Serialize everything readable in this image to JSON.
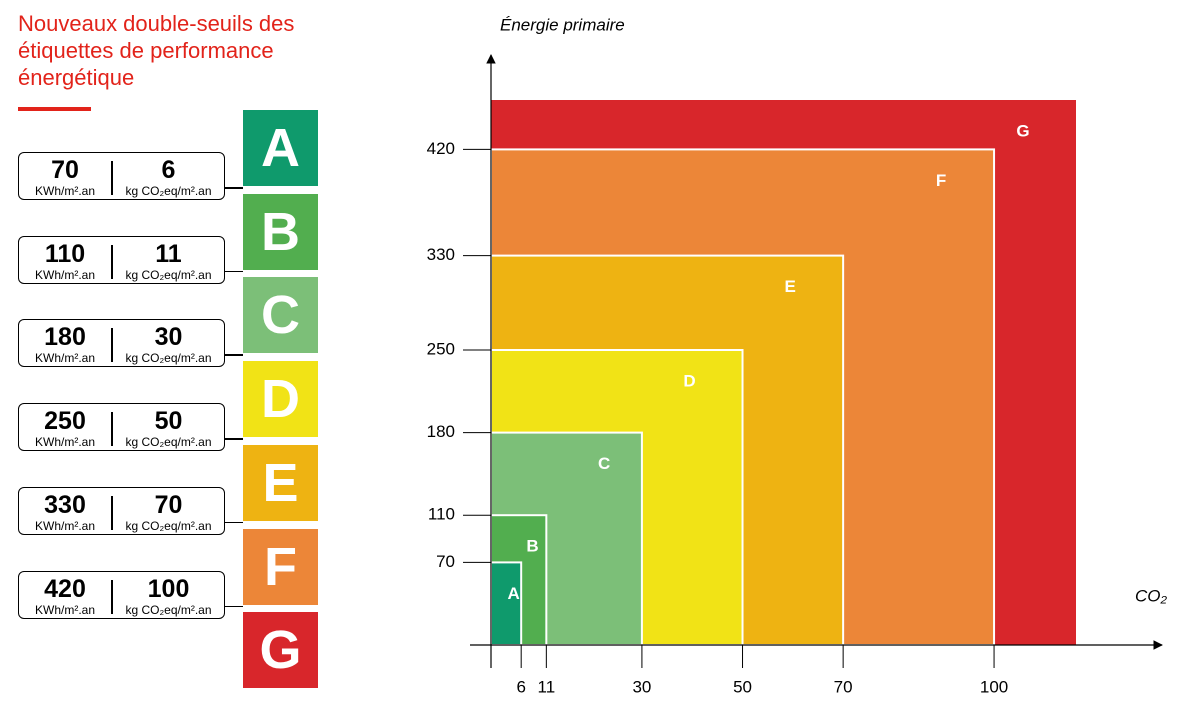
{
  "header": {
    "title": "Nouveaux double-seuils des étiquettes de performance énergétique"
  },
  "chart_data": {
    "type": "threshold-rect",
    "y_label": "Énergie primaire",
    "x_label": "CO₂",
    "units": {
      "energy": "KWh/m².an",
      "co2": "kg CO₂eq/m².an"
    },
    "categories": [
      "A",
      "B",
      "C",
      "D",
      "E",
      "F",
      "G"
    ],
    "values": [
      70,
      110,
      180,
      250,
      330,
      420,
      null
    ],
    "x": [
      6,
      11,
      30,
      50,
      70,
      100,
      null
    ],
    "colors": [
      "#0f9a6c",
      "#52ae4f",
      "#7cbf78",
      "#f1e316",
      "#eeb312",
      "#ec8638",
      "#d8262b"
    ],
    "xlim": [
      0,
      131
    ],
    "ylim": [
      0,
      500
    ],
    "xticks": [
      6,
      11,
      30,
      50,
      70,
      100
    ],
    "yticks": [
      70,
      110,
      180,
      250,
      330,
      420
    ]
  }
}
